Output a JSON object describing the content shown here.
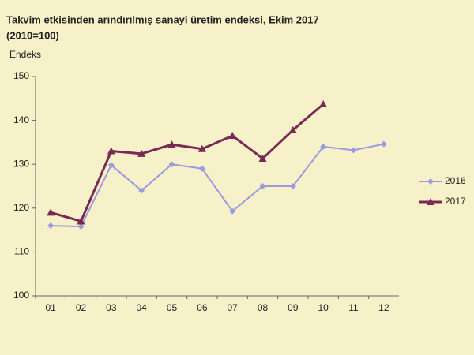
{
  "chart_data": {
    "type": "line",
    "title": "Takvim etkisinden arındırılmış sanayi üretim endeksi,  Ekim 2017",
    "subtitle": "(2010=100)",
    "y_label": "Endeks",
    "categories": [
      "01",
      "02",
      "03",
      "04",
      "05",
      "06",
      "07",
      "08",
      "09",
      "10",
      "11",
      "12"
    ],
    "series": [
      {
        "name": "2016",
        "color": "#9b9be0",
        "marker": "diamond",
        "values": [
          116,
          115.8,
          129.8,
          124,
          130,
          129,
          119.3,
          125,
          125,
          134,
          133.2,
          134.6
        ]
      },
      {
        "name": "2017",
        "color": "#7a2a52",
        "marker": "triangle",
        "values": [
          119,
          117,
          133,
          132.4,
          134.5,
          133.5,
          136.5,
          131.3,
          137.8,
          143.7,
          null,
          null
        ]
      }
    ],
    "ylim": [
      100,
      150
    ],
    "yticks": [
      100,
      110,
      120,
      130,
      140,
      150
    ],
    "grid": false,
    "legend": "right"
  }
}
